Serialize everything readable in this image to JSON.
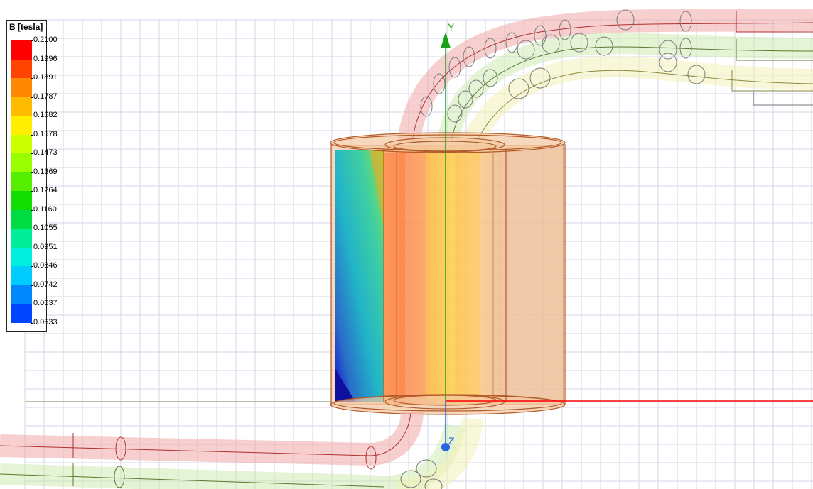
{
  "legend": {
    "title": "B [tesla]",
    "values": [
      "0.2100",
      "0.1996",
      "0.1891",
      "0.1787",
      "0.1682",
      "0.1578",
      "0.1473",
      "0.1369",
      "0.1264",
      "0.1160",
      "0.1055",
      "0.0951",
      "0.0846",
      "0.0742",
      "0.0637",
      "0.0533"
    ],
    "colors": [
      "#ff0000",
      "#ff4400",
      "#ff8800",
      "#ffbb00",
      "#ffee00",
      "#ccff00",
      "#99ff00",
      "#55ee00",
      "#11dd00",
      "#00dd44",
      "#00ee99",
      "#00eedd",
      "#00ccff",
      "#0088ff",
      "#0044ff",
      "#0000ff"
    ]
  },
  "axes": {
    "y_label": "Y",
    "z_label": "Z",
    "y_color": "#19a319",
    "x_color": "#ff0000",
    "z_color": "#2b63e0"
  },
  "model": {
    "cylinder_color": "#f0b07a",
    "outline_color": "#b35a2a",
    "wire_red": "#f08a8a",
    "wire_green": "#c9ef9a",
    "wire_yellow": "#f0f0a8"
  }
}
